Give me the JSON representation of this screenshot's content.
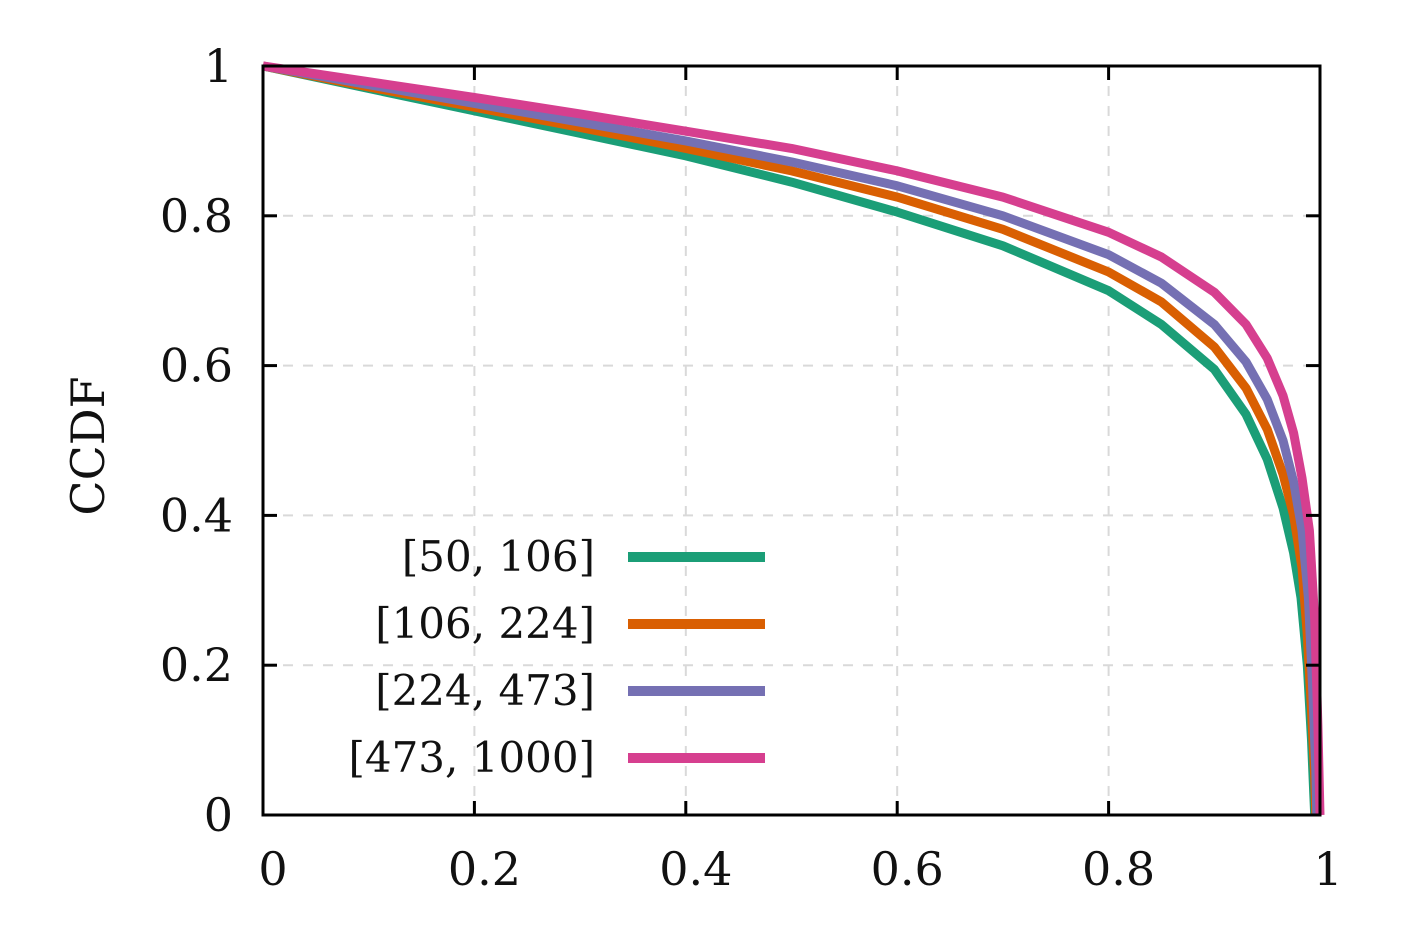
{
  "chart_data": {
    "type": "line",
    "title": "",
    "xlabel": "",
    "ylabel": "CCDF",
    "xlim": [
      0,
      1
    ],
    "ylim": [
      0,
      1
    ],
    "x_ticks": [
      "0",
      "0.2",
      "0.4",
      "0.6",
      "0.8",
      "1"
    ],
    "y_ticks": [
      "0",
      "0.2",
      "0.4",
      "0.6",
      "0.8",
      "1"
    ],
    "grid": true,
    "legend_position": "bottom-left",
    "series": [
      {
        "name": "[50, 106]",
        "color": "#1b9e77",
        "points": [
          [
            0,
            1
          ],
          [
            0.1,
            0.97
          ],
          [
            0.2,
            0.94
          ],
          [
            0.3,
            0.91
          ],
          [
            0.4,
            0.88
          ],
          [
            0.5,
            0.845
          ],
          [
            0.6,
            0.805
          ],
          [
            0.7,
            0.76
          ],
          [
            0.8,
            0.7
          ],
          [
            0.85,
            0.655
          ],
          [
            0.9,
            0.595
          ],
          [
            0.93,
            0.535
          ],
          [
            0.95,
            0.475
          ],
          [
            0.965,
            0.41
          ],
          [
            0.975,
            0.35
          ],
          [
            0.982,
            0.29
          ],
          [
            0.988,
            0.2
          ],
          [
            0.992,
            0.1
          ],
          [
            0.994,
            0.03
          ],
          [
            0.995,
            0
          ]
        ]
      },
      {
        "name": "[106, 224]",
        "color": "#d95f02",
        "points": [
          [
            0,
            1
          ],
          [
            0.1,
            0.972
          ],
          [
            0.2,
            0.945
          ],
          [
            0.3,
            0.918
          ],
          [
            0.4,
            0.89
          ],
          [
            0.5,
            0.86
          ],
          [
            0.6,
            0.825
          ],
          [
            0.7,
            0.782
          ],
          [
            0.8,
            0.725
          ],
          [
            0.85,
            0.685
          ],
          [
            0.9,
            0.625
          ],
          [
            0.93,
            0.57
          ],
          [
            0.95,
            0.515
          ],
          [
            0.965,
            0.455
          ],
          [
            0.975,
            0.4
          ],
          [
            0.983,
            0.33
          ],
          [
            0.988,
            0.24
          ],
          [
            0.992,
            0.14
          ],
          [
            0.995,
            0.05
          ],
          [
            0.996,
            0
          ]
        ]
      },
      {
        "name": "[224, 473]",
        "color": "#7570b3",
        "points": [
          [
            0,
            1
          ],
          [
            0.1,
            0.975
          ],
          [
            0.2,
            0.95
          ],
          [
            0.3,
            0.925
          ],
          [
            0.4,
            0.9
          ],
          [
            0.5,
            0.872
          ],
          [
            0.6,
            0.84
          ],
          [
            0.7,
            0.8
          ],
          [
            0.8,
            0.748
          ],
          [
            0.85,
            0.71
          ],
          [
            0.9,
            0.655
          ],
          [
            0.93,
            0.605
          ],
          [
            0.95,
            0.555
          ],
          [
            0.965,
            0.5
          ],
          [
            0.975,
            0.445
          ],
          [
            0.983,
            0.38
          ],
          [
            0.989,
            0.29
          ],
          [
            0.993,
            0.17
          ],
          [
            0.996,
            0.06
          ],
          [
            0.997,
            0
          ]
        ]
      },
      {
        "name": "[473, 1000]",
        "color": "#d63f8f",
        "points": [
          [
            0,
            1
          ],
          [
            0.1,
            0.979
          ],
          [
            0.2,
            0.958
          ],
          [
            0.3,
            0.936
          ],
          [
            0.4,
            0.913
          ],
          [
            0.5,
            0.89
          ],
          [
            0.6,
            0.86
          ],
          [
            0.7,
            0.825
          ],
          [
            0.8,
            0.778
          ],
          [
            0.85,
            0.745
          ],
          [
            0.9,
            0.698
          ],
          [
            0.93,
            0.655
          ],
          [
            0.95,
            0.61
          ],
          [
            0.965,
            0.56
          ],
          [
            0.975,
            0.51
          ],
          [
            0.983,
            0.45
          ],
          [
            0.99,
            0.38
          ],
          [
            0.995,
            0.26
          ],
          [
            0.998,
            0.12
          ],
          [
            1.0,
            0
          ]
        ]
      }
    ]
  }
}
